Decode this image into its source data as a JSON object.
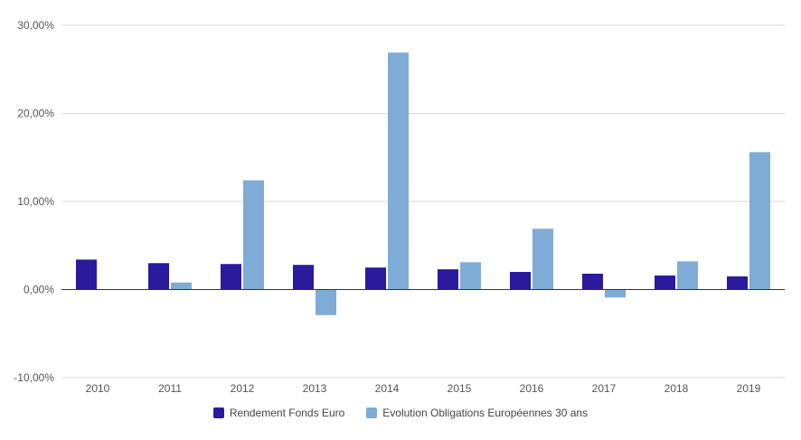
{
  "chart_data": {
    "type": "bar",
    "categories": [
      "2010",
      "2011",
      "2012",
      "2013",
      "2014",
      "2015",
      "2016",
      "2017",
      "2018",
      "2019"
    ],
    "series": [
      {
        "name": "Rendement Fonds Euro",
        "color": "#2a1a9c",
        "values": [
          3.4,
          3.0,
          2.9,
          2.8,
          2.5,
          2.3,
          2.0,
          1.8,
          1.6,
          1.5
        ]
      },
      {
        "name": "Evolution Obligations Européennes 30 ans",
        "color": "#7eacd6",
        "values": [
          0.0,
          0.8,
          12.4,
          -2.9,
          26.9,
          3.1,
          6.9,
          -0.9,
          3.2,
          15.6
        ]
      }
    ],
    "ylim": [
      -10,
      30
    ],
    "yticks": [
      -10,
      0,
      10,
      20,
      30
    ],
    "ytick_labels": [
      "-10,00%",
      "0,00%",
      "10,00%",
      "20,00%",
      "30,00%"
    ],
    "grid": true,
    "legend_position": "bottom",
    "xlabel": "",
    "ylabel": "",
    "title": ""
  }
}
